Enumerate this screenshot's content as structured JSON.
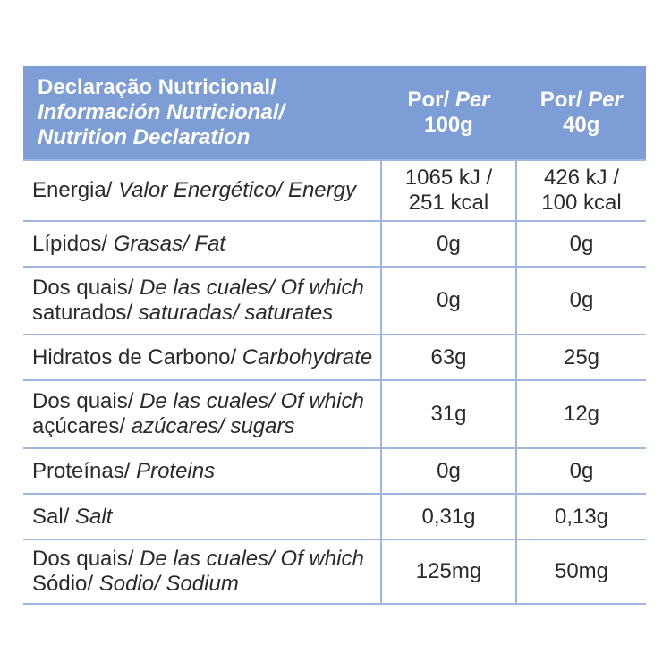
{
  "header": {
    "label_lines": [
      {
        "plain": "Declaração Nutricional/",
        "italic": ""
      },
      {
        "plain": "",
        "italic": "Información Nutricional/"
      },
      {
        "plain": "",
        "italic": "Nutrition Declaration"
      }
    ],
    "col1": {
      "prefix": "Por/",
      "italic": " Per",
      "amount": "100g"
    },
    "col2": {
      "prefix": "Por/",
      "italic": " Per",
      "amount": "40g"
    }
  },
  "rows": [
    {
      "lines": [
        {
          "plain": "Energia/ ",
          "italic": "Valor Energético/ Energy"
        }
      ],
      "v1": [
        "1065 kJ /",
        "251 kcal"
      ],
      "v2": [
        "426 kJ /",
        "100 kcal"
      ]
    },
    {
      "lines": [
        {
          "plain": "Lípidos/ ",
          "italic": "Grasas/ Fat"
        }
      ],
      "v1": [
        "0g"
      ],
      "v2": [
        "0g"
      ]
    },
    {
      "lines": [
        {
          "plain": "Dos quais/ ",
          "italic": "De las cuales/ Of which"
        },
        {
          "plain": "saturados/ ",
          "italic": "saturadas/ saturates"
        }
      ],
      "v1": [
        "0g"
      ],
      "v2": [
        "0g"
      ]
    },
    {
      "lines": [
        {
          "plain": "Hidratos de Carbono/ ",
          "italic": "Carbohydrate"
        }
      ],
      "v1": [
        "63g"
      ],
      "v2": [
        "25g"
      ]
    },
    {
      "lines": [
        {
          "plain": "Dos quais/ ",
          "italic": "De las cuales/ Of which"
        },
        {
          "plain": "açúcares/ ",
          "italic": "azúcares/ sugars"
        }
      ],
      "v1": [
        "31g"
      ],
      "v2": [
        "12g"
      ]
    },
    {
      "lines": [
        {
          "plain": "Proteínas/ ",
          "italic": "Proteins"
        }
      ],
      "v1": [
        "0g"
      ],
      "v2": [
        "0g"
      ]
    },
    {
      "lines": [
        {
          "plain": "Sal/ ",
          "italic": "Salt"
        }
      ],
      "v1": [
        "0,31g"
      ],
      "v2": [
        "0,13g"
      ]
    },
    {
      "lines": [
        {
          "plain": "Dos quais/ ",
          "italic": "De las cuales/ Of which"
        },
        {
          "plain": "Sódio/ ",
          "italic": "Sodio/ Sodium"
        }
      ],
      "v1": [
        "125mg"
      ],
      "v2": [
        "50mg"
      ]
    }
  ],
  "colors": {
    "header_bg": "#7d9dd6",
    "rule": "#9fb7e0"
  }
}
